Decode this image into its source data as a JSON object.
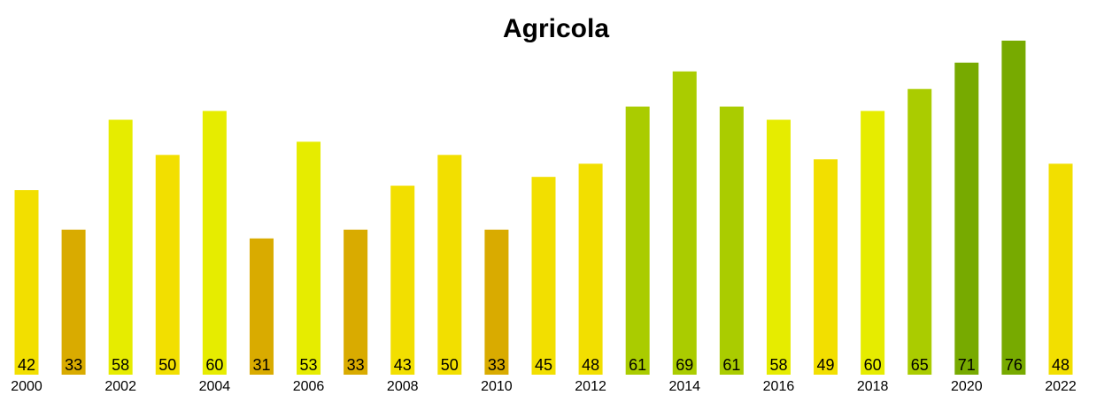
{
  "chart_data": {
    "type": "bar",
    "title": "Agricola",
    "categories": [
      "2000",
      null,
      "2002",
      null,
      "2004",
      null,
      "2006",
      null,
      "2008",
      null,
      "2010",
      null,
      "2012",
      null,
      "2014",
      null,
      "2016",
      null,
      "2018",
      null,
      "2020",
      null,
      "2022"
    ],
    "values": [
      42,
      33,
      58,
      50,
      60,
      31,
      53,
      33,
      43,
      50,
      33,
      45,
      48,
      61,
      69,
      61,
      58,
      49,
      60,
      65,
      71,
      76,
      48
    ],
    "colors": [
      "#f2df00",
      "#d9ab00",
      "#e6ec00",
      "#f2df00",
      "#e6ec00",
      "#d9ab00",
      "#e6ec00",
      "#d9ab00",
      "#f2df00",
      "#f2df00",
      "#d9ab00",
      "#f2df00",
      "#f2df00",
      "#aacc00",
      "#aacc00",
      "#aacc00",
      "#e6ec00",
      "#f2df00",
      "#e6ec00",
      "#aacc00",
      "#77aa00",
      "#77aa00",
      "#f2df00"
    ]
  }
}
